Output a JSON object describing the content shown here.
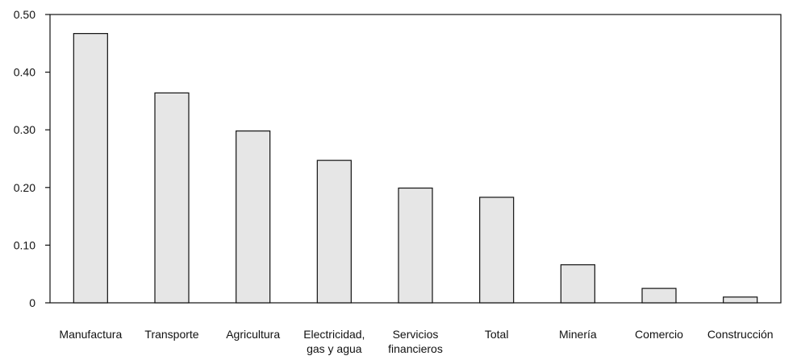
{
  "chart_data": {
    "type": "bar",
    "title": "",
    "xlabel": "",
    "ylabel": "",
    "ylim": [
      0,
      0.5
    ],
    "grid": false,
    "yticks": [
      {
        "value": 0,
        "label": "0"
      },
      {
        "value": 0.1,
        "label": "0.10"
      },
      {
        "value": 0.2,
        "label": "0.20"
      },
      {
        "value": 0.3,
        "label": "0.30"
      },
      {
        "value": 0.4,
        "label": "0.40"
      },
      {
        "value": 0.5,
        "label": "0.50"
      }
    ],
    "categories": [
      [
        "Manufactura"
      ],
      [
        "Transporte"
      ],
      [
        "Agricultura"
      ],
      [
        "Electricidad,",
        "gas y agua"
      ],
      [
        "Servicios",
        "financieros"
      ],
      [
        "Total"
      ],
      [
        "Minería"
      ],
      [
        "Comercio"
      ],
      [
        "Construcción"
      ]
    ],
    "values": [
      0.467,
      0.364,
      0.298,
      0.247,
      0.199,
      0.183,
      0.066,
      0.025,
      0.01
    ],
    "colors": {
      "bar_fill": "#e6e6e6",
      "bar_stroke": "#111111",
      "axis": "#111111"
    }
  }
}
